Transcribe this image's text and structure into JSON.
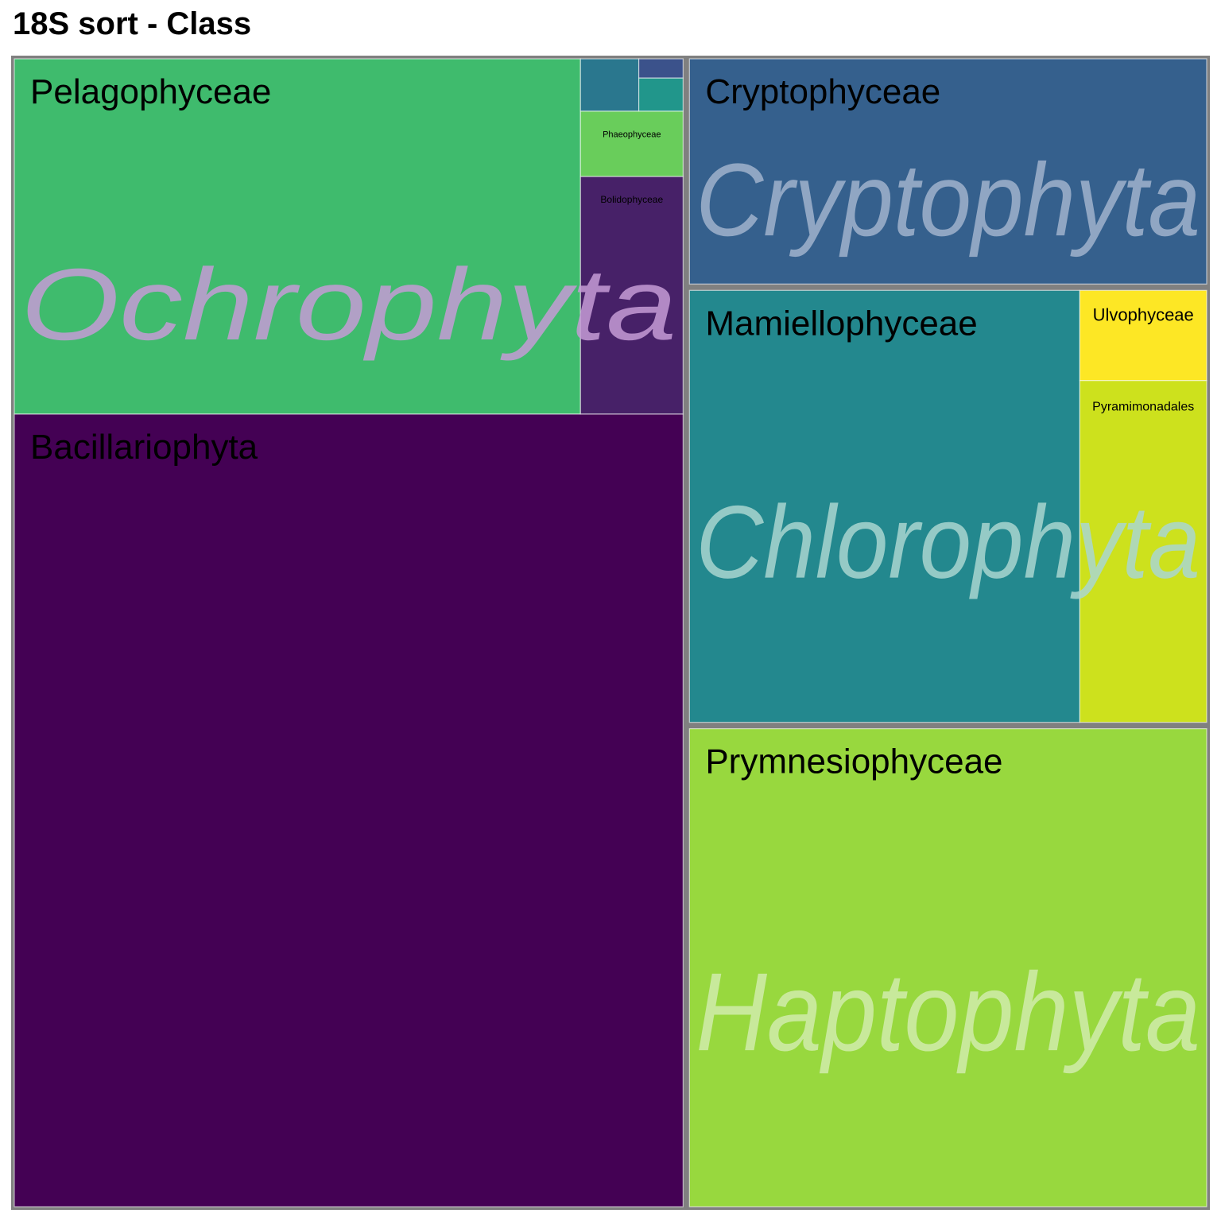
{
  "chart_data": {
    "type": "treemap",
    "title": "18S sort - Class",
    "groups": [
      {
        "name": "Ochrophyta",
        "label_color": "#c59bd6",
        "children": [
          {
            "name": "Bacillariophyta",
            "value": 43.5,
            "color": "#440154",
            "show_label": true
          },
          {
            "name": "Pelagophyceae",
            "value": 16.5,
            "color": "#3fbb6d",
            "show_label": true
          },
          {
            "name": "Bolidophyceae",
            "value": 2.0,
            "color": "#472168",
            "show_label": true
          },
          {
            "name": "Phaeophyceae",
            "value": 0.55,
            "color": "#69cd5b",
            "show_label": true
          },
          {
            "name": "",
            "value": 0.25,
            "color": "#2a778e",
            "show_label": false
          },
          {
            "name": "",
            "value": 0.12,
            "color": "#21968b",
            "show_label": false
          },
          {
            "name": "",
            "value": 0.07,
            "color": "#3b528b",
            "show_label": false
          }
        ]
      },
      {
        "name": "Chlorophyta",
        "label_color": "#a9d6d0",
        "children": [
          {
            "name": "Mamiellophyceae",
            "value": 14.0,
            "color": "#23888e",
            "show_label": true
          },
          {
            "name": "Pyramimonadales",
            "value": 3.6,
            "color": "#cde11d",
            "show_label": true
          },
          {
            "name": "Ulvophyceae",
            "value": 0.95,
            "color": "#fde725",
            "show_label": true
          }
        ]
      },
      {
        "name": "Haptophyta",
        "label_color": "#d0ecac",
        "children": [
          {
            "name": "Prymnesiophyceae",
            "value": 20.5,
            "color": "#98d83e",
            "show_label": true
          }
        ]
      },
      {
        "name": "Cryptophyta",
        "label_color": "#a0b3cc",
        "children": [
          {
            "name": "Cryptophyceae",
            "value": 9.8,
            "color": "#35608d",
            "show_label": true
          }
        ]
      }
    ]
  }
}
